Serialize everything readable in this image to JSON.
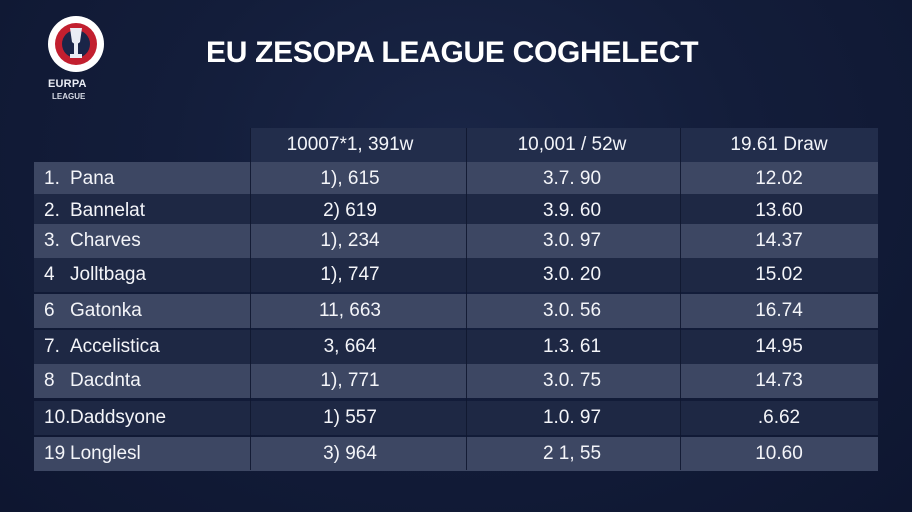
{
  "logo": {
    "word": "EURPA",
    "sub": "LEAGUE"
  },
  "title": "EU ZESOPA LEAGUE COGHELECT",
  "columns": [
    "10007*1, 391w",
    "10,001 / 52w",
    "19.61 Draw"
  ],
  "rows": [
    {
      "rank": "1.",
      "team": "Pana",
      "c1": "1), 615",
      "c2": "3.7. 90",
      "c3": "12.02"
    },
    {
      "rank": "2.",
      "team": "Bannelat",
      "c1": "2) 619",
      "c2": "3.9. 60",
      "c3": "13.60"
    },
    {
      "rank": "3.",
      "team": "Charves",
      "c1": "1), 234",
      "c2": "3.0. 97",
      "c3": "14.37"
    },
    {
      "rank": "4",
      "team": "Jolltbaga",
      "c1": "1), 747",
      "c2": "3.0. 20",
      "c3": "15.02"
    },
    {
      "rank": "6",
      "team": "Gatonka",
      "c1": "11, 663",
      "c2": "3.0. 56",
      "c3": "16.74"
    },
    {
      "rank": "7.",
      "team": "Accelistica",
      "c1": "3, 664",
      "c2": "1.3. 61",
      "c3": "14.95"
    },
    {
      "rank": "8",
      "team": "Dacdnta",
      "c1": "1), 771",
      "c2": "3.0. 75",
      "c3": "14.73"
    },
    {
      "rank": "10.",
      "team": "Daddsyone",
      "c1": "1) 557",
      "c2": "1.0. 97",
      "c3": ".6.62"
    },
    {
      "rank": "19",
      "team": "Longlesl",
      "c1": "3) 964",
      "c2": "2 1, 55",
      "c3": "10.60"
    }
  ]
}
